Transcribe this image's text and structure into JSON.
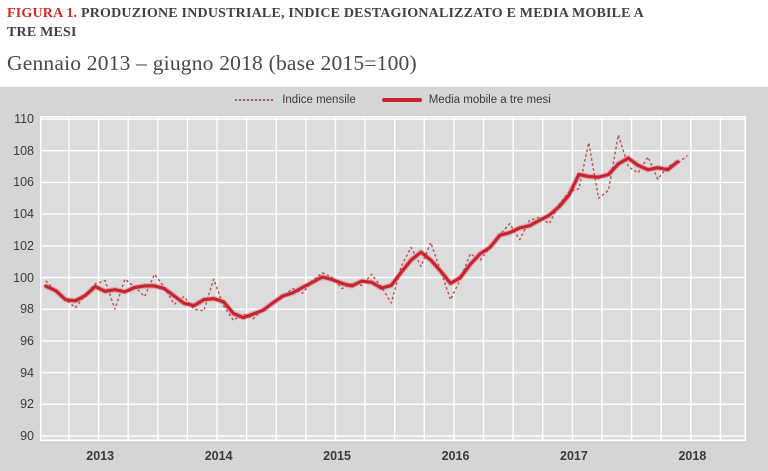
{
  "figure": {
    "label": "FIGURA 1.",
    "title_line1": "PRODUZIONE INDUSTRIALE, INDICE DESTAGIONALIZZATO E MEDIA MOBILE A",
    "title_line2": "TRE MESI",
    "subtitle": "Gennaio 2013 – giugno 2018 (base 2015=100)"
  },
  "legend": {
    "monthly_label": "Indice mensile",
    "ma_label": "Media mobile a tre mesi"
  },
  "colors": {
    "figure_label_red": "#d32b1e",
    "title_gray": "#404042",
    "figure_background": "#d5d5d6",
    "panel_background": "#dcdcdc",
    "gridline": "#ffffff",
    "monthly_line": "#bf4a50",
    "moving_average_line": "#c9242e",
    "axis_text": "#3b3b3b"
  },
  "chart_data": {
    "type": "line",
    "title": "Produzione industriale, indice destagionalizzato e media mobile a tre mesi",
    "subtitle": "Gennaio 2013 – giugno 2018 (base 2015=100)",
    "frequency": "monthly",
    "x_start": "2013-01",
    "x_end": "2018-06",
    "ylim": [
      90,
      110
    ],
    "y_ticks": [
      110,
      108,
      106,
      104,
      102,
      100,
      98,
      96,
      94,
      92,
      90
    ],
    "grid": true,
    "legend_position": "top-center",
    "year_ticks": [
      {
        "label": "2013",
        "month_index_center": 5.5
      },
      {
        "label": "2014",
        "month_index_center": 17.5
      },
      {
        "label": "2015",
        "month_index_center": 29.5
      },
      {
        "label": "2016",
        "month_index_center": 41.5
      },
      {
        "label": "2017",
        "month_index_center": 53.5
      },
      {
        "label": "2018",
        "month_index_center": 65.5
      }
    ],
    "months": [
      "2013-01",
      "2013-02",
      "2013-03",
      "2013-04",
      "2013-05",
      "2013-06",
      "2013-07",
      "2013-08",
      "2013-09",
      "2013-10",
      "2013-11",
      "2013-12",
      "2014-01",
      "2014-02",
      "2014-03",
      "2014-04",
      "2014-05",
      "2014-06",
      "2014-07",
      "2014-08",
      "2014-09",
      "2014-10",
      "2014-11",
      "2014-12",
      "2015-01",
      "2015-02",
      "2015-03",
      "2015-04",
      "2015-05",
      "2015-06",
      "2015-07",
      "2015-08",
      "2015-09",
      "2015-10",
      "2015-11",
      "2015-12",
      "2016-01",
      "2016-02",
      "2016-03",
      "2016-04",
      "2016-05",
      "2016-06",
      "2016-07",
      "2016-08",
      "2016-09",
      "2016-10",
      "2016-11",
      "2016-12",
      "2017-01",
      "2017-02",
      "2017-03",
      "2017-04",
      "2017-05",
      "2017-06",
      "2017-07",
      "2017-08",
      "2017-09",
      "2017-10",
      "2017-11",
      "2017-12",
      "2018-01",
      "2018-02",
      "2018-03",
      "2018-04",
      "2018-05",
      "2018-06"
    ],
    "series": [
      {
        "name": "Indice mensile",
        "style": "dotted",
        "values": [
          99.8,
          99.1,
          98.6,
          98.1,
          98.9,
          99.6,
          99.8,
          98.0,
          99.9,
          99.4,
          98.8,
          100.2,
          99.4,
          98.3,
          98.8,
          98.0,
          97.9,
          99.9,
          98.2,
          97.3,
          97.7,
          97.4,
          98.0,
          98.4,
          98.8,
          99.3,
          99.0,
          99.8,
          100.3,
          100.0,
          99.3,
          99.6,
          99.5,
          100.2,
          99.4,
          98.4,
          100.7,
          101.9,
          100.7,
          102.2,
          100.4,
          98.6,
          99.9,
          101.5,
          101.1,
          101.9,
          102.7,
          103.4,
          102.4,
          103.6,
          103.8,
          103.4,
          104.6,
          105.4,
          105.6,
          108.5,
          105.0,
          105.5,
          109.0,
          107.0,
          106.6,
          107.6,
          106.2,
          107.0,
          107.2,
          107.7
        ]
      },
      {
        "name": "Media mobile a tre mesi",
        "style": "solid",
        "values": [
          99.45,
          99.17,
          98.6,
          98.53,
          98.87,
          99.43,
          99.13,
          99.23,
          99.1,
          99.37,
          99.47,
          99.47,
          99.3,
          98.83,
          98.37,
          98.23,
          98.6,
          98.67,
          98.47,
          97.73,
          97.47,
          97.7,
          97.93,
          98.4,
          98.83,
          99.03,
          99.37,
          99.7,
          100.03,
          99.87,
          99.63,
          99.47,
          99.77,
          99.7,
          99.33,
          99.5,
          100.33,
          101.1,
          101.6,
          101.1,
          100.4,
          99.63,
          100.0,
          100.83,
          101.5,
          101.9,
          102.67,
          102.83,
          103.13,
          103.27,
          103.6,
          103.93,
          104.47,
          105.2,
          106.5,
          106.37,
          106.33,
          106.5,
          107.17,
          107.53,
          107.07,
          106.8,
          106.93,
          106.8,
          107.3
        ]
      }
    ]
  }
}
